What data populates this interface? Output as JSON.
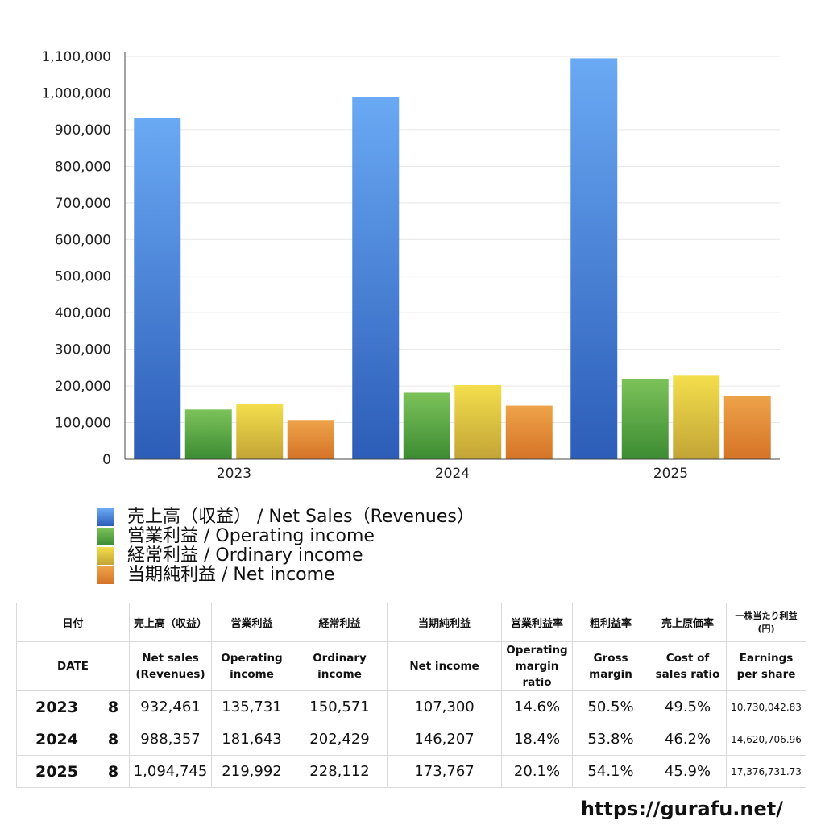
{
  "chart_data": {
    "type": "bar",
    "categories": [
      "2023",
      "2024",
      "2025"
    ],
    "series": [
      {
        "name": "売上高（収益） / Net Sales（Revenues）",
        "values": [
          932461,
          988357,
          1094745
        ],
        "color_top": "#6aa9f4",
        "color_bottom": "#2c5db8"
      },
      {
        "name": "営業利益 / Operating income",
        "values": [
          135731,
          181643,
          219992
        ],
        "color_top": "#7cc25a",
        "color_bottom": "#3c8c32"
      },
      {
        "name": "経常利益 / Ordinary income",
        "values": [
          150571,
          202429,
          228112
        ],
        "color_top": "#f3de4c",
        "color_bottom": "#c2a436"
      },
      {
        "name": "当期純利益 / Net income",
        "values": [
          107300,
          146207,
          173767
        ],
        "color_top": "#eea34a",
        "color_bottom": "#d57326"
      }
    ],
    "ylim": [
      0,
      1100000
    ],
    "yticks": [
      "0",
      "100,000",
      "200,000",
      "300,000",
      "400,000",
      "500,000",
      "600,000",
      "700,000",
      "800,000",
      "900,000",
      "1,000,000",
      "1,100,000"
    ],
    "grid": true,
    "legend_position": "bottom-left"
  },
  "table": {
    "headers_jp": [
      "日付",
      "売上高（収益）",
      "営業利益",
      "経常利益",
      "当期純利益",
      "営業利益率",
      "粗利益率",
      "売上原価率",
      "一株当たり利益\n(円)"
    ],
    "headers_en": [
      "DATE",
      "Net sales\n(Revenues)",
      "Operating\nincome",
      "Ordinary\nincome",
      "Net income",
      "Operating\nmargin\nratio",
      "Gross\nmargin",
      "Cost of\nsales ratio",
      "Earnings\nper share"
    ],
    "rows": [
      {
        "year": "2023",
        "month": "8",
        "net_sales": "932,461",
        "operating_income": "135,731",
        "ordinary_income": "150,571",
        "net_income": "107,300",
        "op_margin": "14.6%",
        "gross_margin": "50.5%",
        "cost_ratio": "49.5%",
        "eps": "10,730,042.83"
      },
      {
        "year": "2024",
        "month": "8",
        "net_sales": "988,357",
        "operating_income": "181,643",
        "ordinary_income": "202,429",
        "net_income": "146,207",
        "op_margin": "18.4%",
        "gross_margin": "53.8%",
        "cost_ratio": "46.2%",
        "eps": "14,620,706.96"
      },
      {
        "year": "2025",
        "month": "8",
        "net_sales": "1,094,745",
        "operating_income": "219,992",
        "ordinary_income": "228,112",
        "net_income": "173,767",
        "op_margin": "20.1%",
        "gross_margin": "54.1%",
        "cost_ratio": "45.9%",
        "eps": "17,376,731.73"
      }
    ]
  },
  "site_url": "https://gurafu.net/"
}
